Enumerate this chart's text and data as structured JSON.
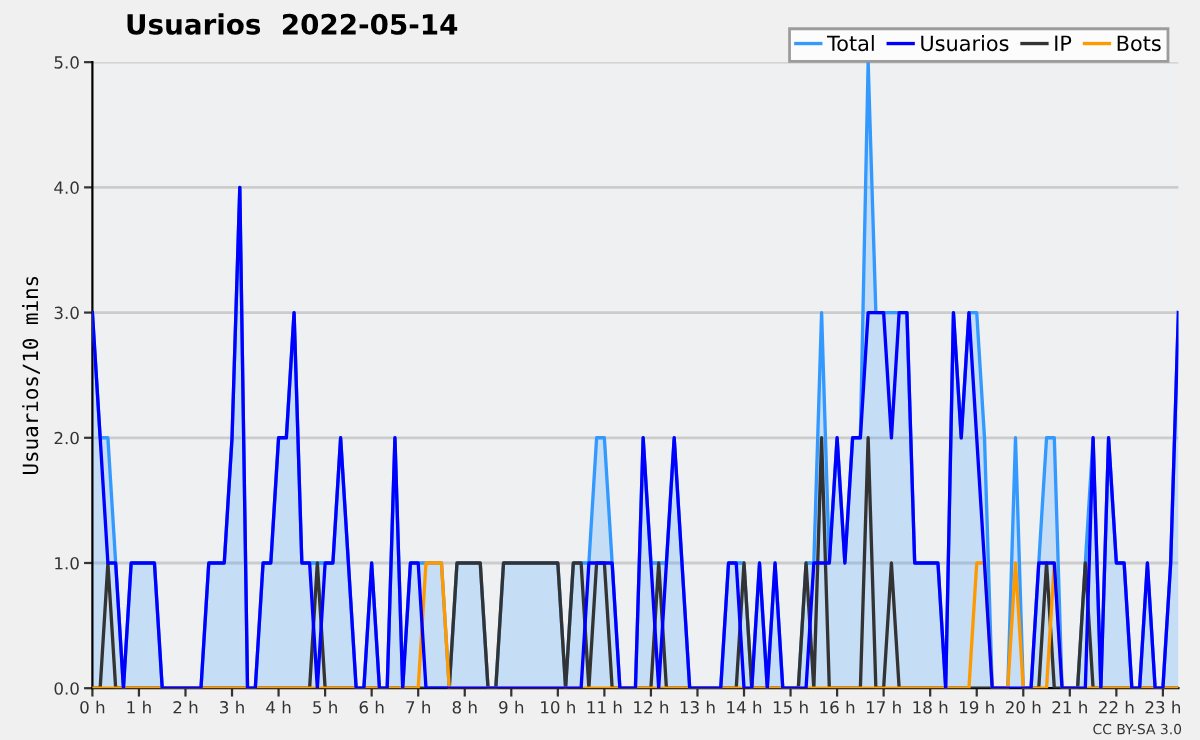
{
  "chart_data": {
    "type": "line",
    "title": "Usuarios  2022-05-14",
    "ylabel": "Usuarios/10 mins",
    "annotations": [
      "CC BY-SA 3.0"
    ],
    "x": [
      0,
      0.167,
      0.333,
      0.5,
      0.667,
      0.833,
      1,
      1.167,
      1.333,
      1.5,
      1.667,
      1.833,
      2,
      2.167,
      2.333,
      2.5,
      2.667,
      2.833,
      3,
      3.167,
      3.333,
      3.5,
      3.667,
      3.833,
      4,
      4.167,
      4.333,
      4.5,
      4.667,
      4.833,
      5,
      5.167,
      5.333,
      5.5,
      5.667,
      5.833,
      6,
      6.167,
      6.333,
      6.5,
      6.667,
      6.833,
      7,
      7.167,
      7.333,
      7.5,
      7.667,
      7.833,
      8,
      8.167,
      8.333,
      8.5,
      8.667,
      8.833,
      9,
      9.167,
      9.333,
      9.5,
      9.667,
      9.833,
      10,
      10.167,
      10.333,
      10.5,
      10.667,
      10.833,
      11,
      11.167,
      11.333,
      11.5,
      11.667,
      11.833,
      12,
      12.167,
      12.333,
      12.5,
      12.667,
      12.833,
      13,
      13.167,
      13.333,
      13.5,
      13.667,
      13.833,
      14,
      14.167,
      14.333,
      14.5,
      14.667,
      14.833,
      15,
      15.167,
      15.333,
      15.5,
      15.667,
      15.833,
      16,
      16.167,
      16.333,
      16.5,
      16.667,
      16.833,
      17,
      17.167,
      17.333,
      17.5,
      17.667,
      17.833,
      18,
      18.167,
      18.333,
      18.5,
      18.667,
      18.833,
      19,
      19.167,
      19.333,
      19.5,
      19.667,
      19.833,
      20,
      20.167,
      20.333,
      20.5,
      20.667,
      20.833,
      21,
      21.167,
      21.333,
      21.5,
      21.667,
      21.833,
      22,
      22.167,
      22.333,
      22.5,
      22.667,
      22.833,
      23,
      23.167,
      23.333
    ],
    "series": [
      {
        "name": "Total",
        "type": "area",
        "color": "#3399ff",
        "values": [
          3,
          2,
          2,
          1,
          0,
          1,
          1,
          1,
          1,
          0,
          0,
          0,
          0,
          0,
          0,
          1,
          1,
          1,
          2,
          4,
          0,
          0,
          1,
          1,
          2,
          2,
          3,
          1,
          1,
          1,
          1,
          1,
          2,
          1,
          0,
          0,
          1,
          0,
          0,
          2,
          0,
          1,
          1,
          1,
          1,
          1,
          0,
          1,
          1,
          1,
          1,
          0,
          0,
          1,
          1,
          1,
          1,
          1,
          1,
          1,
          1,
          0,
          1,
          1,
          1,
          2,
          2,
          1,
          0,
          0,
          0,
          2,
          1,
          1,
          1,
          2,
          1,
          0,
          0,
          0,
          0,
          0,
          1,
          1,
          1,
          0,
          1,
          0,
          1,
          0,
          0,
          0,
          1,
          1,
          3,
          1,
          2,
          1,
          2,
          2,
          5,
          3,
          3,
          3,
          3,
          3,
          1,
          1,
          1,
          1,
          0,
          3,
          2,
          3,
          3,
          2,
          0,
          0,
          0,
          2,
          0,
          0,
          1,
          2,
          2,
          0,
          0,
          0,
          1,
          2,
          0,
          2,
          1,
          1,
          0,
          0,
          1,
          0,
          0,
          1,
          3
        ]
      },
      {
        "name": "Usuarios",
        "color": "#0000ff",
        "values": [
          3,
          2,
          1,
          1,
          0,
          1,
          1,
          1,
          1,
          0,
          0,
          0,
          0,
          0,
          0,
          1,
          1,
          1,
          2,
          4,
          0,
          0,
          1,
          1,
          2,
          2,
          3,
          1,
          1,
          0,
          1,
          1,
          2,
          1,
          0,
          0,
          1,
          0,
          0,
          2,
          0,
          1,
          1,
          0,
          0,
          0,
          0,
          0,
          0,
          0,
          0,
          0,
          0,
          0,
          0,
          0,
          0,
          0,
          0,
          0,
          0,
          0,
          0,
          0,
          1,
          1,
          1,
          1,
          0,
          0,
          0,
          2,
          1,
          0,
          1,
          2,
          1,
          0,
          0,
          0,
          0,
          0,
          1,
          1,
          0,
          0,
          1,
          0,
          1,
          0,
          0,
          0,
          0,
          1,
          1,
          1,
          2,
          1,
          2,
          2,
          3,
          3,
          3,
          2,
          3,
          3,
          1,
          1,
          1,
          1,
          0,
          3,
          2,
          3,
          2,
          1,
          0,
          0,
          0,
          0,
          0,
          0,
          1,
          1,
          1,
          0,
          0,
          0,
          0,
          2,
          0,
          2,
          1,
          1,
          0,
          0,
          1,
          0,
          0,
          1,
          3
        ]
      },
      {
        "name": "IP",
        "color": "#333333",
        "values": [
          0,
          0,
          1,
          0,
          0,
          0,
          0,
          0,
          0,
          0,
          0,
          0,
          0,
          0,
          0,
          0,
          0,
          0,
          0,
          0,
          0,
          0,
          0,
          0,
          0,
          0,
          0,
          0,
          0,
          1,
          0,
          0,
          0,
          0,
          0,
          0,
          0,
          0,
          0,
          0,
          0,
          0,
          0,
          0,
          0,
          0,
          0,
          1,
          1,
          1,
          1,
          0,
          0,
          1,
          1,
          1,
          1,
          1,
          1,
          1,
          1,
          0,
          1,
          1,
          0,
          1,
          1,
          0,
          0,
          0,
          0,
          0,
          0,
          1,
          0,
          0,
          0,
          0,
          0,
          0,
          0,
          0,
          0,
          0,
          1,
          0,
          0,
          0,
          0,
          0,
          0,
          0,
          1,
          0,
          2,
          0,
          0,
          0,
          0,
          0,
          2,
          0,
          0,
          1,
          0,
          0,
          0,
          0,
          0,
          0,
          0,
          0,
          0,
          0,
          0,
          0,
          0,
          0,
          0,
          null,
          0,
          0,
          0,
          1,
          0,
          0,
          0,
          0,
          1,
          0,
          0,
          0,
          0,
          0,
          0,
          0,
          0,
          0,
          0,
          0,
          0
        ]
      },
      {
        "name": "Bots",
        "color": "#ff9900",
        "values": [
          0,
          0,
          0,
          0,
          0,
          0,
          0,
          0,
          0,
          0,
          0,
          0,
          0,
          0,
          0,
          0,
          0,
          0,
          0,
          0,
          0,
          0,
          0,
          0,
          0,
          0,
          0,
          0,
          0,
          0,
          0,
          0,
          0,
          0,
          0,
          0,
          0,
          0,
          0,
          0,
          0,
          0,
          0,
          1,
          1,
          1,
          0,
          0,
          0,
          0,
          0,
          0,
          0,
          0,
          0,
          0,
          0,
          0,
          0,
          0,
          0,
          0,
          0,
          0,
          0,
          0,
          0,
          0,
          0,
          0,
          0,
          0,
          0,
          0,
          0,
          0,
          0,
          0,
          0,
          0,
          0,
          0,
          0,
          0,
          0,
          0,
          0,
          0,
          0,
          0,
          0,
          0,
          0,
          0,
          0,
          0,
          0,
          0,
          0,
          0,
          0,
          0,
          0,
          0,
          0,
          0,
          0,
          0,
          0,
          0,
          0,
          0,
          0,
          0,
          1,
          1,
          0,
          0,
          0,
          1,
          0,
          0,
          0,
          0,
          1,
          0,
          0,
          0,
          0,
          0,
          0,
          0,
          0,
          0,
          0,
          0,
          0,
          0,
          0,
          0,
          0
        ]
      }
    ],
    "xlim": [
      0,
      23.333
    ],
    "xticks": [
      {
        "value": 0,
        "label": "0 h"
      },
      {
        "value": 1,
        "label": "1 h"
      },
      {
        "value": 2,
        "label": "2 h"
      },
      {
        "value": 3,
        "label": "3 h"
      },
      {
        "value": 4,
        "label": "4 h"
      },
      {
        "value": 5,
        "label": "5 h"
      },
      {
        "value": 6,
        "label": "6 h"
      },
      {
        "value": 7,
        "label": "7 h"
      },
      {
        "value": 8,
        "label": "8 h"
      },
      {
        "value": 9,
        "label": "9 h"
      },
      {
        "value": 10,
        "label": "10 h"
      },
      {
        "value": 11,
        "label": "11 h"
      },
      {
        "value": 12,
        "label": "12 h"
      },
      {
        "value": 13,
        "label": "13 h"
      },
      {
        "value": 14,
        "label": "14 h"
      },
      {
        "value": 15,
        "label": "15 h"
      },
      {
        "value": 16,
        "label": "16 h"
      },
      {
        "value": 17,
        "label": "17 h"
      },
      {
        "value": 18,
        "label": "18 h"
      },
      {
        "value": 19,
        "label": "19 h"
      },
      {
        "value": 20,
        "label": "20 h"
      },
      {
        "value": 21,
        "label": "21 h"
      },
      {
        "value": 22,
        "label": "22 h"
      },
      {
        "value": 23,
        "label": "23 h"
      }
    ],
    "ylim": [
      0,
      5
    ],
    "yticks": [
      {
        "value": 0,
        "label": "0.0"
      },
      {
        "value": 1,
        "label": "1.0"
      },
      {
        "value": 2,
        "label": "2.0"
      },
      {
        "value": 3,
        "label": "3.0"
      },
      {
        "value": 4,
        "label": "4.0"
      },
      {
        "value": 5,
        "label": "5.0"
      }
    ],
    "grid": "y",
    "legend": "top right"
  }
}
